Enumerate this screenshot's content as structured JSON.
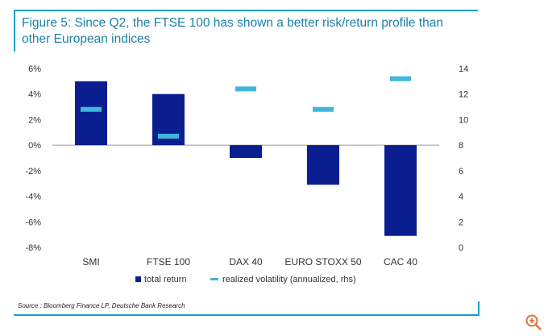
{
  "title": "Figure 5: Since Q2, the FTSE 100 has shown a better risk/return profile than other European indices",
  "source": "Source : Bloomberg Finance LP, Deutsche Bank Research",
  "colors": {
    "bar": "#0b1e8f",
    "marker": "#3fb6de",
    "rule": "#1aa0cc"
  },
  "zoom_icon": "zoom-in-icon",
  "chart_data": {
    "type": "bar",
    "categories": [
      "SMI",
      "FTSE 100",
      "DAX 40",
      "EURO STOXX 50",
      "CAC 40"
    ],
    "series": [
      {
        "name": "total return",
        "axis": "left",
        "type": "bar",
        "values": [
          5.0,
          4.0,
          -1.0,
          -3.1,
          -7.1
        ]
      },
      {
        "name": "realized volatility (annualized, rhs)",
        "axis": "right",
        "type": "marker",
        "values": [
          10.8,
          8.7,
          12.4,
          10.8,
          13.2
        ]
      }
    ],
    "left_axis": {
      "min": -8,
      "max": 6,
      "ticks": [
        "6%",
        "4%",
        "2%",
        "0%",
        "-2%",
        "-4%",
        "-6%",
        "-8%"
      ]
    },
    "right_axis": {
      "min": 0,
      "max": 14,
      "ticks": [
        "14",
        "12",
        "10",
        "8",
        "6",
        "4",
        "2",
        "0"
      ]
    },
    "legend_position": "bottom-center",
    "grid": false
  }
}
